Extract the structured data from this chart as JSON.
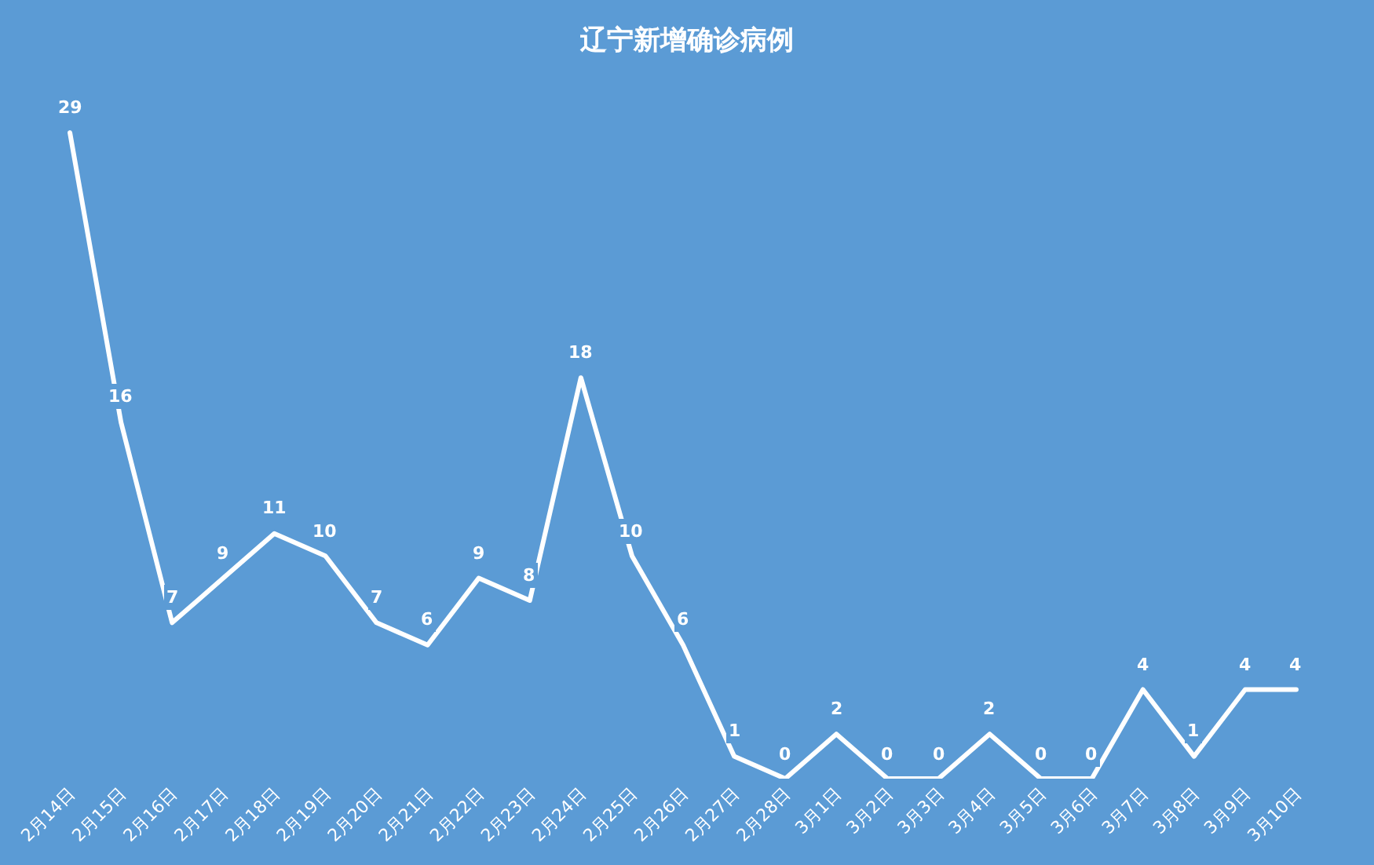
{
  "chart_data": {
    "type": "line",
    "title": "辽宁新增确诊病例",
    "categories": [
      "2月14日",
      "2月15日",
      "2月16日",
      "2月17日",
      "2月18日",
      "2月19日",
      "2月20日",
      "2月21日",
      "2月22日",
      "2月23日",
      "2月24日",
      "2月25日",
      "2月26日",
      "2月27日",
      "2月28日",
      "3月1日",
      "3月2日",
      "3月3日",
      "3月4日",
      "3月5日",
      "3月6日",
      "3月7日",
      "3月8日",
      "3月9日",
      "3月10日"
    ],
    "values": [
      29,
      16,
      7,
      9,
      11,
      10,
      7,
      6,
      9,
      8,
      18,
      10,
      6,
      1,
      0,
      2,
      0,
      0,
      2,
      0,
      0,
      4,
      1,
      4,
      4
    ],
    "color": "#ffffff",
    "data_labels": true,
    "marker": "none",
    "line_style": "solid",
    "grid": false,
    "tick_labels": "x"
  }
}
